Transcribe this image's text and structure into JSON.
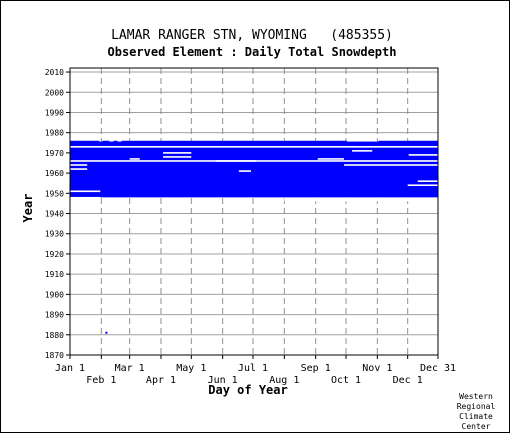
{
  "chart_data": {
    "type": "heatmap",
    "title": "LAMAR RANGER STN, WYOMING   (485355)",
    "subtitle": "Observed Element : Daily Total Snowdepth",
    "xlabel": "Day of Year",
    "ylabel": "Year",
    "xlim": [
      1,
      365
    ],
    "ylim": [
      1870,
      2012
    ],
    "y_ticks": [
      1870,
      1880,
      1890,
      1900,
      1910,
      1920,
      1930,
      1940,
      1950,
      1960,
      1970,
      1980,
      1990,
      2000,
      2010
    ],
    "x_ticks_top_row": [
      {
        "label": "Jan 1",
        "day": 1
      },
      {
        "label": "Mar 1",
        "day": 60
      },
      {
        "label": "May 1",
        "day": 121
      },
      {
        "label": "Jul 1",
        "day": 182
      },
      {
        "label": "Sep 1",
        "day": 244
      },
      {
        "label": "Nov 1",
        "day": 305
      },
      {
        "label": "Dec 31",
        "day": 365
      }
    ],
    "x_ticks_bottom_row": [
      {
        "label": "Feb 1",
        "day": 32
      },
      {
        "label": "Apr 1",
        "day": 91
      },
      {
        "label": "Jun 1",
        "day": 152
      },
      {
        "label": "Aug 1",
        "day": 213
      },
      {
        "label": "Oct 1",
        "day": 274
      },
      {
        "label": "Dec 1",
        "day": 335
      }
    ],
    "grid": true,
    "data_color": "#0000ff",
    "coverage": {
      "record_start": 1948,
      "record_end": 1976,
      "full_years": "1948-1976 observed nearly every day"
    },
    "blocks": [
      {
        "day_start": 1,
        "day_end": 365,
        "year_start": 1948,
        "year_end": 1975
      }
    ],
    "gaps": [
      {
        "day_start": 1,
        "day_end": 31,
        "year_start": 1950.6,
        "year_end": 1951.4
      },
      {
        "day_start": 1,
        "day_end": 18,
        "year_start": 1961.6,
        "year_end": 1962.4
      },
      {
        "day_start": 1,
        "day_end": 18,
        "year_start": 1963.6,
        "year_end": 1964.4
      },
      {
        "day_start": 1,
        "day_end": 365,
        "year_start": 1965.6,
        "year_end": 1966.4
      },
      {
        "day_start": 1,
        "day_end": 365,
        "year_start": 1972.6,
        "year_end": 1973.4
      },
      {
        "day_start": 60,
        "day_end": 70,
        "year_start": 1966.6,
        "year_end": 1967.4
      },
      {
        "day_start": 93,
        "day_end": 121,
        "year_start": 1969.6,
        "year_end": 1970.4
      },
      {
        "day_start": 93,
        "day_end": 121,
        "year_start": 1967.6,
        "year_end": 1968.4
      },
      {
        "day_start": 145,
        "day_end": 185,
        "year_start": 1965.6,
        "year_end": 1966.4
      },
      {
        "day_start": 168,
        "day_end": 180,
        "year_start": 1960.6,
        "year_end": 1961.4
      },
      {
        "day_start": 246,
        "day_end": 272,
        "year_start": 1966.6,
        "year_end": 1967.4
      },
      {
        "day_start": 272,
        "day_end": 365,
        "year_start": 1963.6,
        "year_end": 1964.4
      },
      {
        "day_start": 280,
        "day_end": 300,
        "year_start": 1970.6,
        "year_end": 1971.4
      },
      {
        "day_start": 336,
        "day_end": 365,
        "year_start": 1968.6,
        "year_end": 1969.4
      },
      {
        "day_start": 345,
        "day_end": 365,
        "year_start": 1955.6,
        "year_end": 1956.4
      },
      {
        "day_start": 335,
        "day_end": 365,
        "year_start": 1953.6,
        "year_end": 1954.4
      },
      {
        "day_start": 1,
        "day_end": 31,
        "year_start": 1947.0,
        "year_end": 1948.2
      },
      {
        "day_start": 213,
        "day_end": 365,
        "year_start": 1946.0,
        "year_end": 1947.6
      }
    ],
    "top_year_partial": [
      {
        "day_start": 1,
        "day_end": 30,
        "year": 1975.5
      },
      {
        "day_start": 33,
        "day_end": 40,
        "year": 1975.5
      },
      {
        "day_start": 44,
        "day_end": 48,
        "year": 1975.5
      },
      {
        "day_start": 52,
        "day_end": 275,
        "year": 1975.5
      },
      {
        "day_start": 306,
        "day_end": 365,
        "year": 1975.5
      }
    ],
    "isolated_points": [
      {
        "day": 36,
        "year": 1881
      }
    ]
  },
  "credit": [
    "Western",
    "Regional",
    "Climate",
    "Center"
  ]
}
